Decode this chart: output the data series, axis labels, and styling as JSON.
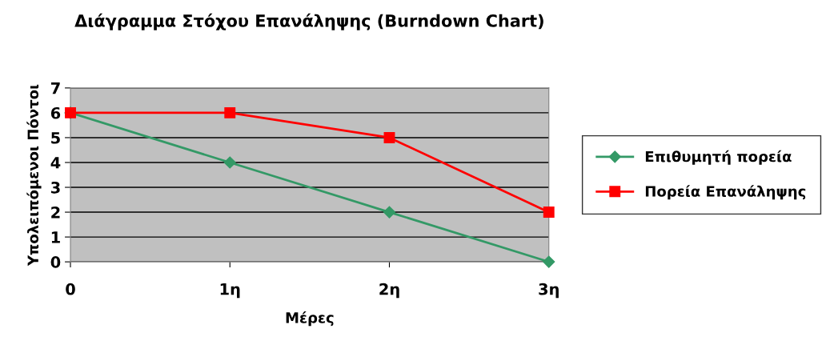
{
  "chart_data": {
    "type": "line",
    "title": "Διάγραμμα Στόχου Επανάληψης (Burndown Chart)",
    "xlabel": "Μέρες",
    "ylabel": "Υπολειπόμενοι Πόντοι",
    "categories": [
      "0",
      "1η",
      "2η",
      "3η"
    ],
    "series": [
      {
        "name": "Επιθυμητή πορεία",
        "color": "#339966",
        "values": [
          6,
          4,
          2,
          0
        ],
        "marker": "diamond"
      },
      {
        "name": "Πορεία Επανάληψης",
        "color": "#ff0000",
        "values": [
          6,
          6,
          5,
          2
        ],
        "marker": "square"
      }
    ],
    "ylim": [
      0,
      7
    ],
    "yticks": [
      0,
      1,
      2,
      3,
      4,
      5,
      6,
      7
    ],
    "grid": "y",
    "legend": "right",
    "line_style": "solid"
  }
}
